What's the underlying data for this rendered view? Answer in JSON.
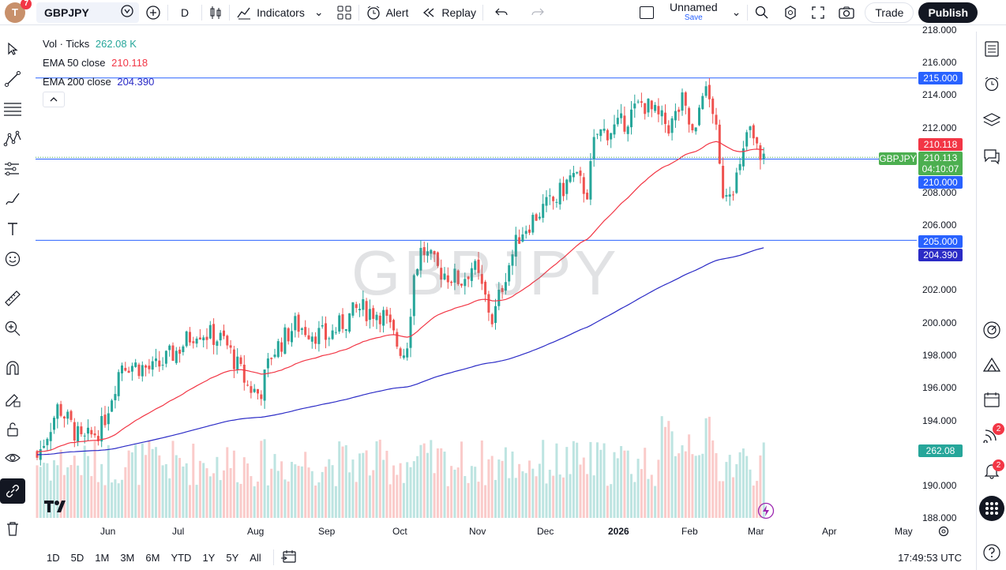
{
  "header": {
    "avatar_letter": "T",
    "avatar_badge": "7",
    "symbol": "GBPJPY",
    "interval": "D",
    "indicators_label": "Indicators",
    "alert_label": "Alert",
    "replay_label": "Replay",
    "layout_name": "Unnamed",
    "layout_save": "Save",
    "trade_label": "Trade",
    "publish_label": "Publish"
  },
  "legend": {
    "vol_label": "Vol · Ticks",
    "vol_value": "262.08 K",
    "ema50_label": "EMA 50 close",
    "ema50_value": "210.118",
    "ema200_label": "EMA 200 close",
    "ema200_value": "204.390"
  },
  "watermark": "GBPJPY",
  "price_axis": {
    "ticks": [
      "218.000",
      "216.000",
      "214.000",
      "212.000",
      "210.000",
      "208.000",
      "206.000",
      "204.000",
      "202.000",
      "200.000",
      "198.000",
      "196.000",
      "194.000",
      "192.000",
      "190.000",
      "188.000"
    ],
    "labels": {
      "line_215": "215.000",
      "ema50": "210.118",
      "last": "210.113",
      "countdown": "04:10:07",
      "line_210": "210.000",
      "line_205": "205.000",
      "ema200": "204.390",
      "volume": "262.08 K",
      "symbol_tag": "GBPJPY"
    }
  },
  "time_axis": [
    "Jun",
    "Jul",
    "Aug",
    "Sep",
    "Oct",
    "Nov",
    "Dec",
    "2026",
    "Feb",
    "Mar",
    "Apr",
    "May"
  ],
  "bottom": {
    "ranges": [
      "1D",
      "5D",
      "1M",
      "3M",
      "6M",
      "YTD",
      "1Y",
      "5Y",
      "All"
    ],
    "clock": "17:49:53 UTC"
  },
  "right_bar": {
    "badge_1": "2",
    "badge_2": "2"
  },
  "colors": {
    "up": "#26a69a",
    "down": "#ef5350",
    "ema50": "#f23645",
    "ema200": "#2b2bc6",
    "hline": "#2962ff",
    "last_price": "#4caf50"
  },
  "chart_data": {
    "type": "candlestick",
    "title": "GBPJPY",
    "ylim": [
      188,
      218
    ],
    "horizontal_lines": [
      215.0,
      210.0,
      205.0
    ],
    "last_price": 210.113,
    "ema50_last": 210.118,
    "ema200_last": 204.39,
    "x_ticks": [
      "Jun",
      "Jul",
      "Aug",
      "Sep",
      "Oct",
      "Nov",
      "Dec",
      "2026",
      "Feb",
      "Mar",
      "Apr",
      "May"
    ],
    "approx_close_path": [
      {
        "x": "May",
        "y": 191.5
      },
      {
        "x": "Jun",
        "y": 194.5
      },
      {
        "x": "Jul",
        "y": 198.5
      },
      {
        "x": "Aug",
        "y": 196.0
      },
      {
        "x": "Sep",
        "y": 199.0
      },
      {
        "x": "Oct",
        "y": 198.5
      },
      {
        "x": "Oct",
        "y": 203.0
      },
      {
        "x": "Nov",
        "y": 201.5
      },
      {
        "x": "Dec",
        "y": 207.5
      },
      {
        "x": "2026",
        "y": 211.5
      },
      {
        "x": "Feb",
        "y": 214.0
      },
      {
        "x": "Feb",
        "y": 208.5
      },
      {
        "x": "Mar",
        "y": 210.1
      }
    ]
  }
}
